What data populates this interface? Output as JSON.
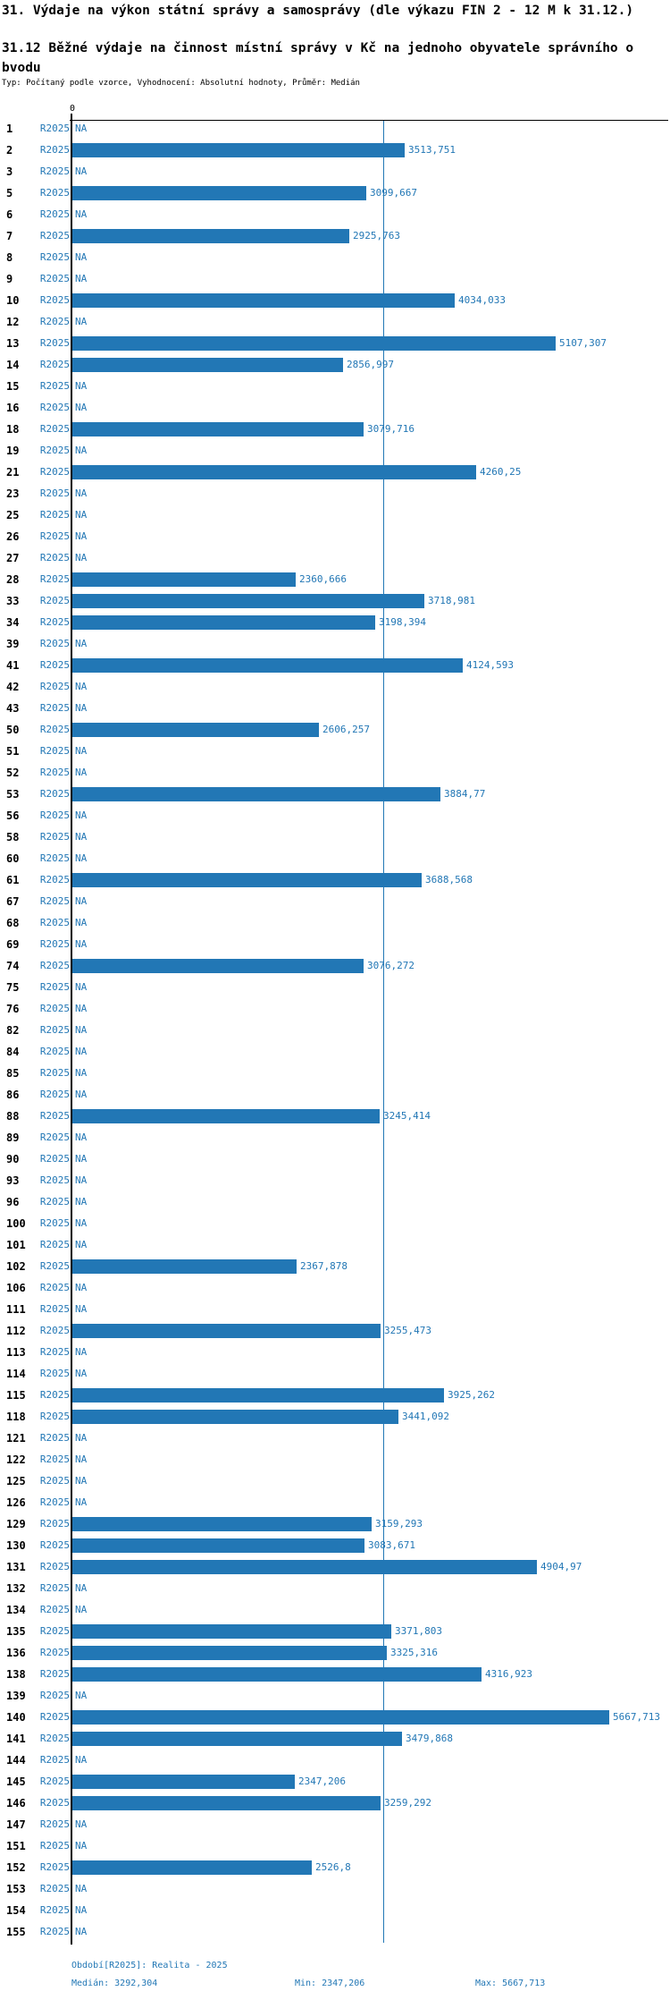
{
  "title1": "31. Výdaje na výkon státní správy a samosprávy (dle výkazu FIN 2 - 12 M k 31.12.)",
  "title2_line1": "31.12 Běžné výdaje na činnost místní správy v Kč na jednoho obyvatele správního o",
  "title2_line2": "bvodu",
  "subtitle": "Typ: Počítaný podle vzorce, Vyhodnocení: Absolutní hodnoty, Průměr: Medián",
  "series_label": "R2025",
  "na_label": "NA",
  "axis": {
    "zero_label": "0"
  },
  "colors": {
    "accent": "#2277b5",
    "ink": "#000000"
  },
  "footer": {
    "period": "Období[R2025]: Realita - 2025",
    "median": "Medián: 3292,304",
    "min": "Min: 2347,206",
    "max": "Max: 5667,713"
  },
  "chart_data": {
    "type": "bar",
    "orientation": "horizontal",
    "title": "31.12 Běžné výdaje na činnost místní správy v Kč na jednoho obyvatele správního obvodu",
    "series_name": "R2025",
    "median": 3292.304,
    "min": 2347.206,
    "max": 5667.713,
    "xlim": [
      0,
      6300
    ],
    "median_line": true,
    "rows": [
      {
        "id": "1",
        "value": null,
        "label": "NA"
      },
      {
        "id": "2",
        "value": 3513.751,
        "label": "3513,751"
      },
      {
        "id": "3",
        "value": null,
        "label": "NA"
      },
      {
        "id": "5",
        "value": 3099.667,
        "label": "3099,667"
      },
      {
        "id": "6",
        "value": null,
        "label": "NA"
      },
      {
        "id": "7",
        "value": 2925.763,
        "label": "2925,763"
      },
      {
        "id": "8",
        "value": null,
        "label": "NA"
      },
      {
        "id": "9",
        "value": null,
        "label": "NA"
      },
      {
        "id": "10",
        "value": 4034.033,
        "label": "4034,033"
      },
      {
        "id": "12",
        "value": null,
        "label": "NA"
      },
      {
        "id": "13",
        "value": 5107.307,
        "label": "5107,307"
      },
      {
        "id": "14",
        "value": 2856.997,
        "label": "2856,997"
      },
      {
        "id": "15",
        "value": null,
        "label": "NA"
      },
      {
        "id": "16",
        "value": null,
        "label": "NA"
      },
      {
        "id": "18",
        "value": 3079.716,
        "label": "3079,716"
      },
      {
        "id": "19",
        "value": null,
        "label": "NA"
      },
      {
        "id": "21",
        "value": 4260.25,
        "label": "4260,25"
      },
      {
        "id": "23",
        "value": null,
        "label": "NA"
      },
      {
        "id": "25",
        "value": null,
        "label": "NA"
      },
      {
        "id": "26",
        "value": null,
        "label": "NA"
      },
      {
        "id": "27",
        "value": null,
        "label": "NA"
      },
      {
        "id": "28",
        "value": 2360.666,
        "label": "2360,666"
      },
      {
        "id": "33",
        "value": 3718.981,
        "label": "3718,981"
      },
      {
        "id": "34",
        "value": 3198.394,
        "label": "3198,394"
      },
      {
        "id": "39",
        "value": null,
        "label": "NA"
      },
      {
        "id": "41",
        "value": 4124.593,
        "label": "4124,593"
      },
      {
        "id": "42",
        "value": null,
        "label": "NA"
      },
      {
        "id": "43",
        "value": null,
        "label": "NA"
      },
      {
        "id": "50",
        "value": 2606.257,
        "label": "2606,257"
      },
      {
        "id": "51",
        "value": null,
        "label": "NA"
      },
      {
        "id": "52",
        "value": null,
        "label": "NA"
      },
      {
        "id": "53",
        "value": 3884.77,
        "label": "3884,77"
      },
      {
        "id": "56",
        "value": null,
        "label": "NA"
      },
      {
        "id": "58",
        "value": null,
        "label": "NA"
      },
      {
        "id": "60",
        "value": null,
        "label": "NA"
      },
      {
        "id": "61",
        "value": 3688.568,
        "label": "3688,568"
      },
      {
        "id": "67",
        "value": null,
        "label": "NA"
      },
      {
        "id": "68",
        "value": null,
        "label": "NA"
      },
      {
        "id": "69",
        "value": null,
        "label": "NA"
      },
      {
        "id": "74",
        "value": 3076.272,
        "label": "3076,272"
      },
      {
        "id": "75",
        "value": null,
        "label": "NA"
      },
      {
        "id": "76",
        "value": null,
        "label": "NA"
      },
      {
        "id": "82",
        "value": null,
        "label": "NA"
      },
      {
        "id": "84",
        "value": null,
        "label": "NA"
      },
      {
        "id": "85",
        "value": null,
        "label": "NA"
      },
      {
        "id": "86",
        "value": null,
        "label": "NA"
      },
      {
        "id": "88",
        "value": 3245.414,
        "label": "3245,414"
      },
      {
        "id": "89",
        "value": null,
        "label": "NA"
      },
      {
        "id": "90",
        "value": null,
        "label": "NA"
      },
      {
        "id": "93",
        "value": null,
        "label": "NA"
      },
      {
        "id": "96",
        "value": null,
        "label": "NA"
      },
      {
        "id": "100",
        "value": null,
        "label": "NA"
      },
      {
        "id": "101",
        "value": null,
        "label": "NA"
      },
      {
        "id": "102",
        "value": 2367.878,
        "label": "2367,878"
      },
      {
        "id": "106",
        "value": null,
        "label": "NA"
      },
      {
        "id": "111",
        "value": null,
        "label": "NA"
      },
      {
        "id": "112",
        "value": 3255.473,
        "label": "3255,473"
      },
      {
        "id": "113",
        "value": null,
        "label": "NA"
      },
      {
        "id": "114",
        "value": null,
        "label": "NA"
      },
      {
        "id": "115",
        "value": 3925.262,
        "label": "3925,262"
      },
      {
        "id": "118",
        "value": 3441.092,
        "label": "3441,092"
      },
      {
        "id": "121",
        "value": null,
        "label": "NA"
      },
      {
        "id": "122",
        "value": null,
        "label": "NA"
      },
      {
        "id": "125",
        "value": null,
        "label": "NA"
      },
      {
        "id": "126",
        "value": null,
        "label": "NA"
      },
      {
        "id": "129",
        "value": 3159.293,
        "label": "3159,293"
      },
      {
        "id": "130",
        "value": 3083.671,
        "label": "3083,671"
      },
      {
        "id": "131",
        "value": 4904.97,
        "label": "4904,97"
      },
      {
        "id": "132",
        "value": null,
        "label": "NA"
      },
      {
        "id": "134",
        "value": null,
        "label": "NA"
      },
      {
        "id": "135",
        "value": 3371.803,
        "label": "3371,803"
      },
      {
        "id": "136",
        "value": 3325.316,
        "label": "3325,316"
      },
      {
        "id": "138",
        "value": 4316.923,
        "label": "4316,923"
      },
      {
        "id": "139",
        "value": null,
        "label": "NA"
      },
      {
        "id": "140",
        "value": 5667.713,
        "label": "5667,713"
      },
      {
        "id": "141",
        "value": 3479.868,
        "label": "3479,868"
      },
      {
        "id": "144",
        "value": null,
        "label": "NA"
      },
      {
        "id": "145",
        "value": 2347.206,
        "label": "2347,206"
      },
      {
        "id": "146",
        "value": 3259.292,
        "label": "3259,292"
      },
      {
        "id": "147",
        "value": null,
        "label": "NA"
      },
      {
        "id": "151",
        "value": null,
        "label": "NA"
      },
      {
        "id": "152",
        "value": 2526.8,
        "label": "2526,8"
      },
      {
        "id": "153",
        "value": null,
        "label": "NA"
      },
      {
        "id": "154",
        "value": null,
        "label": "NA"
      },
      {
        "id": "155",
        "value": null,
        "label": "NA"
      }
    ]
  }
}
